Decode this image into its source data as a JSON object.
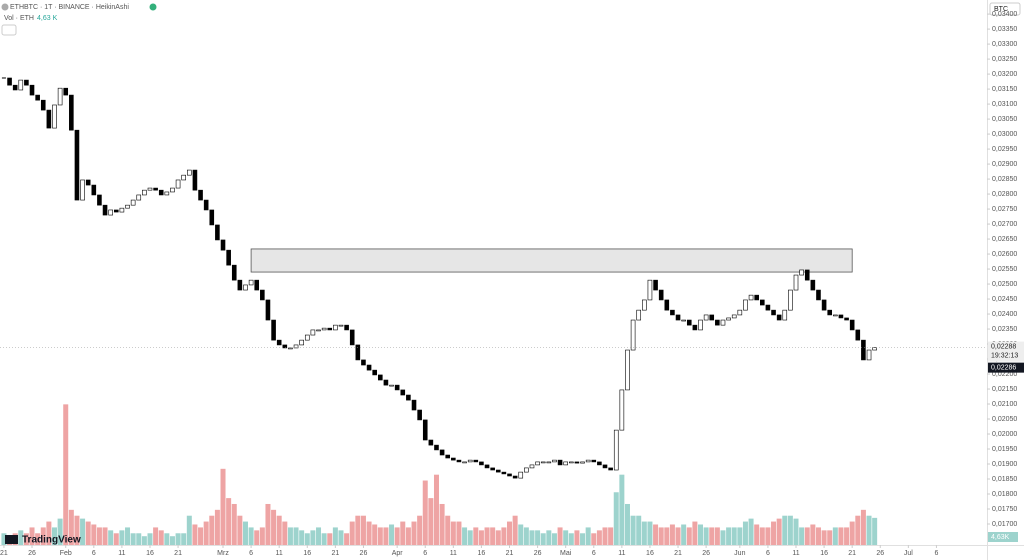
{
  "chart_data": {
    "type": "candlestick",
    "symbol": "ETHBTC · 1T · BINANCE · HeikinAshi",
    "volume_title": "Vol · ETH",
    "volume_last_label": "4,63 K",
    "volume_axis_label": "4,63K",
    "currency": "BTC",
    "price_labels": [
      "0,02288",
      "19:32:13",
      "0,02286"
    ],
    "logo": "TradingView",
    "close": [
      0.03187,
      0.03163,
      0.03147,
      0.0318,
      0.03163,
      0.0313,
      0.03113,
      0.0308,
      0.0302,
      0.03097,
      0.03153,
      0.0313,
      0.03013,
      0.0278,
      0.02847,
      0.0283,
      0.02797,
      0.02763,
      0.0273,
      0.02747,
      0.0274,
      0.02753,
      0.02763,
      0.0278,
      0.02797,
      0.02813,
      0.0282,
      0.02813,
      0.02797,
      0.02807,
      0.0282,
      0.02847,
      0.02863,
      0.0288,
      0.02813,
      0.0278,
      0.02747,
      0.02697,
      0.02647,
      0.02613,
      0.02563,
      0.02513,
      0.0248,
      0.02497,
      0.02513,
      0.0248,
      0.02447,
      0.0238,
      0.02313,
      0.02297,
      0.02287,
      0.02287,
      0.02297,
      0.02313,
      0.0233,
      0.02347,
      0.02347,
      0.02353,
      0.02347,
      0.02363,
      0.02363,
      0.02347,
      0.02297,
      0.02247,
      0.0223,
      0.02213,
      0.02197,
      0.0218,
      0.02163,
      0.02163,
      0.02147,
      0.0213,
      0.02113,
      0.0208,
      0.02047,
      0.0198,
      0.01963,
      0.01947,
      0.0193,
      0.0192,
      0.01913,
      0.01907,
      0.01907,
      0.01913,
      0.01907,
      0.01897,
      0.01887,
      0.0188,
      0.01873,
      0.01867,
      0.0186,
      0.01853,
      0.01873,
      0.01887,
      0.01897,
      0.01907,
      0.01907,
      0.01907,
      0.01913,
      0.01897,
      0.01907,
      0.01907,
      0.01903,
      0.01907,
      0.01913,
      0.01907,
      0.01897,
      0.01887,
      0.0188,
      0.02013,
      0.02147,
      0.0228,
      0.0238,
      0.02413,
      0.02447,
      0.02513,
      0.0248,
      0.02447,
      0.02413,
      0.02397,
      0.0238,
      0.0238,
      0.02363,
      0.02347,
      0.0238,
      0.02397,
      0.0238,
      0.02363,
      0.0238,
      0.02387,
      0.02397,
      0.02413,
      0.02447,
      0.02463,
      0.02447,
      0.0243,
      0.02413,
      0.02397,
      0.0238,
      0.02413,
      0.0248,
      0.0253,
      0.02547,
      0.02513,
      0.0248,
      0.02447,
      0.02413,
      0.02397,
      0.02397,
      0.02387,
      0.0238,
      0.02347,
      0.02313,
      0.02247,
      0.0228,
      0.02288
    ],
    "volume": [
      2,
      1.5,
      2,
      2.5,
      2,
      3,
      2,
      3,
      4,
      3,
      4.5,
      24,
      6,
      5,
      4.5,
      4,
      3.5,
      3,
      3,
      2.5,
      2,
      2.5,
      3,
      2,
      2,
      1.5,
      2,
      3,
      2.5,
      2,
      1.5,
      2,
      2,
      5,
      3.5,
      3,
      4,
      5,
      6,
      13,
      8,
      7,
      5,
      4,
      3,
      2.5,
      3,
      7,
      6,
      5,
      4,
      3,
      3,
      2.5,
      2,
      2.5,
      3,
      2,
      2,
      3,
      2.5,
      2,
      4,
      5,
      5,
      4,
      3.5,
      3,
      3,
      3.5,
      3,
      4,
      3,
      4,
      5,
      11,
      8,
      12,
      7,
      5,
      4,
      4,
      3,
      2.5,
      3,
      2.5,
      3,
      3,
      2.5,
      3,
      4,
      5,
      3.5,
      3,
      2.5,
      2.5,
      2,
      2.5,
      2,
      3,
      2.5,
      2,
      2.5,
      2,
      3,
      2,
      2.5,
      3,
      3,
      9,
      12,
      7,
      5,
      5,
      4,
      4,
      3.5,
      3,
      3,
      3.5,
      3,
      3.5,
      3,
      4,
      3.5,
      3,
      3,
      3,
      2.5,
      3,
      3,
      3,
      4,
      4.5,
      3.5,
      3,
      3,
      4,
      4.5,
      5,
      5,
      4.5,
      3,
      3,
      3.5,
      3,
      2.5,
      2.5,
      3,
      3,
      3,
      4,
      5,
      6,
      5,
      4.63
    ],
    "up_color": "#ffffff",
    "down_color": "#000000",
    "volume_up_color": "#9dd3cd",
    "volume_down_color": "#eea4a4",
    "zone": {
      "x": [
        44,
        151
      ],
      "y": [
        0.0254,
        0.02617
      ]
    },
    "ylim": [
      0.0163,
      0.03447
    ],
    "vlim": [
      0,
      93
    ],
    "xlim": [
      -0.7,
      175
    ],
    "yticks": [
      {
        "value": 0.017,
        "label": "0,01700"
      },
      {
        "value": 0.0175,
        "label": "0,01750"
      },
      {
        "value": 0.018,
        "label": "0,01800"
      },
      {
        "value": 0.0185,
        "label": "0,01850"
      },
      {
        "value": 0.019,
        "label": "0,01900"
      },
      {
        "value": 0.0195,
        "label": "0,01950"
      },
      {
        "value": 0.02,
        "label": "0,02000"
      },
      {
        "value": 0.0205,
        "label": "0,02050"
      },
      {
        "value": 0.021,
        "label": "0,02100"
      },
      {
        "value": 0.0215,
        "label": "0,02150"
      },
      {
        "value": 0.022,
        "label": "0,02200"
      },
      {
        "value": 0.0225,
        "label": "0,02250"
      },
      {
        "value": 0.023,
        "label": "0,02300"
      },
      {
        "value": 0.0235,
        "label": "0,02350"
      },
      {
        "value": 0.024,
        "label": "0,02400"
      },
      {
        "value": 0.0245,
        "label": "0,02450"
      },
      {
        "value": 0.025,
        "label": "0,02500"
      },
      {
        "value": 0.0255,
        "label": "0,02550"
      },
      {
        "value": 0.026,
        "label": "0,02600"
      },
      {
        "value": 0.0265,
        "label": "0,02650"
      },
      {
        "value": 0.027,
        "label": "0,02700"
      },
      {
        "value": 0.0275,
        "label": "0,02750"
      },
      {
        "value": 0.028,
        "label": "0,02800"
      },
      {
        "value": 0.0285,
        "label": "0,02850"
      },
      {
        "value": 0.029,
        "label": "0,02900"
      },
      {
        "value": 0.0295,
        "label": "0,02950"
      },
      {
        "value": 0.03,
        "label": "0,03000"
      },
      {
        "value": 0.0305,
        "label": "0,03050"
      },
      {
        "value": 0.031,
        "label": "0,03100"
      },
      {
        "value": 0.0315,
        "label": "0,03150"
      },
      {
        "value": 0.032,
        "label": "0,03200"
      },
      {
        "value": 0.0325,
        "label": "0,03250"
      },
      {
        "value": 0.033,
        "label": "0,03300"
      },
      {
        "value": 0.0335,
        "label": "0,03350"
      },
      {
        "value": 0.034,
        "label": "0,03400"
      }
    ],
    "xticks": [
      {
        "value": 0,
        "label": "21"
      },
      {
        "value": 5,
        "label": "26"
      },
      {
        "value": 11,
        "label": "Feb"
      },
      {
        "value": 16,
        "label": "6"
      },
      {
        "value": 21,
        "label": "11"
      },
      {
        "value": 26,
        "label": "16"
      },
      {
        "value": 31,
        "label": "21"
      },
      {
        "value": 39,
        "label": "Mrz"
      },
      {
        "value": 44,
        "label": "6"
      },
      {
        "value": 49,
        "label": "11"
      },
      {
        "value": 54,
        "label": "16"
      },
      {
        "value": 59,
        "label": "21"
      },
      {
        "value": 64,
        "label": "26"
      },
      {
        "value": 70,
        "label": "Apr"
      },
      {
        "value": 75,
        "label": "6"
      },
      {
        "value": 80,
        "label": "11"
      },
      {
        "value": 85,
        "label": "16"
      },
      {
        "value": 90,
        "label": "21"
      },
      {
        "value": 95,
        "label": "26"
      },
      {
        "value": 100,
        "label": "Mai"
      },
      {
        "value": 105,
        "label": "6"
      },
      {
        "value": 110,
        "label": "11"
      },
      {
        "value": 115,
        "label": "16"
      },
      {
        "value": 120,
        "label": "21"
      },
      {
        "value": 125,
        "label": "26"
      },
      {
        "value": 131,
        "label": "Jun"
      },
      {
        "value": 136,
        "label": "6"
      },
      {
        "value": 141,
        "label": "11"
      },
      {
        "value": 146,
        "label": "16"
      },
      {
        "value": 151,
        "label": "21"
      },
      {
        "value": 156,
        "label": "26"
      },
      {
        "value": 161,
        "label": "Jul"
      },
      {
        "value": 166,
        "label": "6"
      }
    ]
  }
}
